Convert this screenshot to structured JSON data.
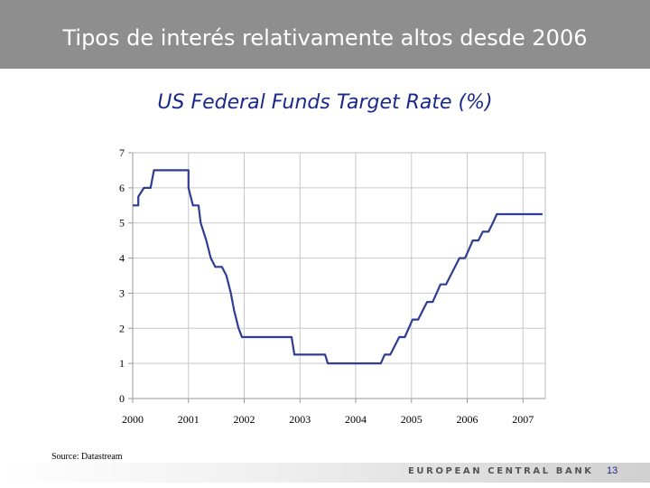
{
  "slide": {
    "title": "Tipos de interés relativamente altos desde 2006",
    "source": "Source: Datastream",
    "footer_bank": "EUROPEAN CENTRAL BANK",
    "page_number": "13"
  },
  "chart_data": {
    "type": "line",
    "title": "US Federal Funds Target Rate (%)",
    "xlabel": "",
    "ylabel": "",
    "xlim": [
      2000.0,
      2007.4
    ],
    "ylim": [
      0,
      7
    ],
    "y_ticks": [
      0,
      1,
      2,
      3,
      4,
      5,
      6,
      7
    ],
    "x_ticks": [
      2000,
      2001,
      2002,
      2003,
      2004,
      2005,
      2006,
      2007
    ],
    "x_tick_labels": [
      "2000",
      "2001",
      "2002",
      "2003",
      "2004",
      "2005",
      "2006",
      "2007"
    ],
    "grid": true,
    "series": [
      {
        "name": "US Federal Funds Target Rate",
        "color": "#2f3c93",
        "points": [
          [
            2000.0,
            5.5
          ],
          [
            2000.1,
            5.5
          ],
          [
            2000.1,
            5.75
          ],
          [
            2000.2,
            6.0
          ],
          [
            2000.32,
            6.0
          ],
          [
            2000.38,
            6.5
          ],
          [
            2001.0,
            6.5
          ],
          [
            2001.0,
            6.0
          ],
          [
            2001.08,
            5.5
          ],
          [
            2001.18,
            5.5
          ],
          [
            2001.22,
            5.0
          ],
          [
            2001.32,
            4.5
          ],
          [
            2001.4,
            4.0
          ],
          [
            2001.48,
            3.75
          ],
          [
            2001.6,
            3.75
          ],
          [
            2001.68,
            3.5
          ],
          [
            2001.76,
            3.0
          ],
          [
            2001.82,
            2.5
          ],
          [
            2001.9,
            2.0
          ],
          [
            2001.96,
            1.75
          ],
          [
            2002.85,
            1.75
          ],
          [
            2002.9,
            1.25
          ],
          [
            2003.45,
            1.25
          ],
          [
            2003.5,
            1.0
          ],
          [
            2004.45,
            1.0
          ],
          [
            2004.52,
            1.25
          ],
          [
            2004.62,
            1.25
          ],
          [
            2004.7,
            1.5
          ],
          [
            2004.78,
            1.75
          ],
          [
            2004.88,
            1.75
          ],
          [
            2004.95,
            2.0
          ],
          [
            2005.02,
            2.25
          ],
          [
            2005.12,
            2.25
          ],
          [
            2005.2,
            2.5
          ],
          [
            2005.28,
            2.75
          ],
          [
            2005.38,
            2.75
          ],
          [
            2005.45,
            3.0
          ],
          [
            2005.52,
            3.25
          ],
          [
            2005.62,
            3.25
          ],
          [
            2005.7,
            3.5
          ],
          [
            2005.78,
            3.75
          ],
          [
            2005.86,
            4.0
          ],
          [
            2005.96,
            4.0
          ],
          [
            2006.03,
            4.25
          ],
          [
            2006.1,
            4.5
          ],
          [
            2006.2,
            4.5
          ],
          [
            2006.28,
            4.75
          ],
          [
            2006.38,
            4.75
          ],
          [
            2006.46,
            5.0
          ],
          [
            2006.53,
            5.25
          ],
          [
            2007.35,
            5.25
          ]
        ]
      }
    ]
  }
}
